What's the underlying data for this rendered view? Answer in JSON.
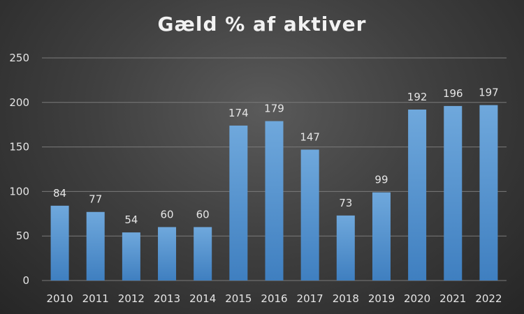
{
  "chart_data": {
    "type": "bar",
    "title": "Gæld % af aktiver",
    "categories": [
      "2010",
      "2011",
      "2012",
      "2013",
      "2014",
      "2015",
      "2016",
      "2017",
      "2018",
      "2019",
      "2020",
      "2021",
      "2022"
    ],
    "values": [
      84,
      77,
      54,
      60,
      60,
      174,
      179,
      147,
      73,
      99,
      192,
      196,
      197
    ],
    "ylim": [
      0,
      250
    ],
    "yticks": [
      0,
      50,
      100,
      150,
      200,
      250
    ],
    "grid": true,
    "legend": "none",
    "bar_color": "#5b9bd5",
    "bar_color_light": "#6fa8dc",
    "bar_color_dark": "#3f7fc0"
  }
}
